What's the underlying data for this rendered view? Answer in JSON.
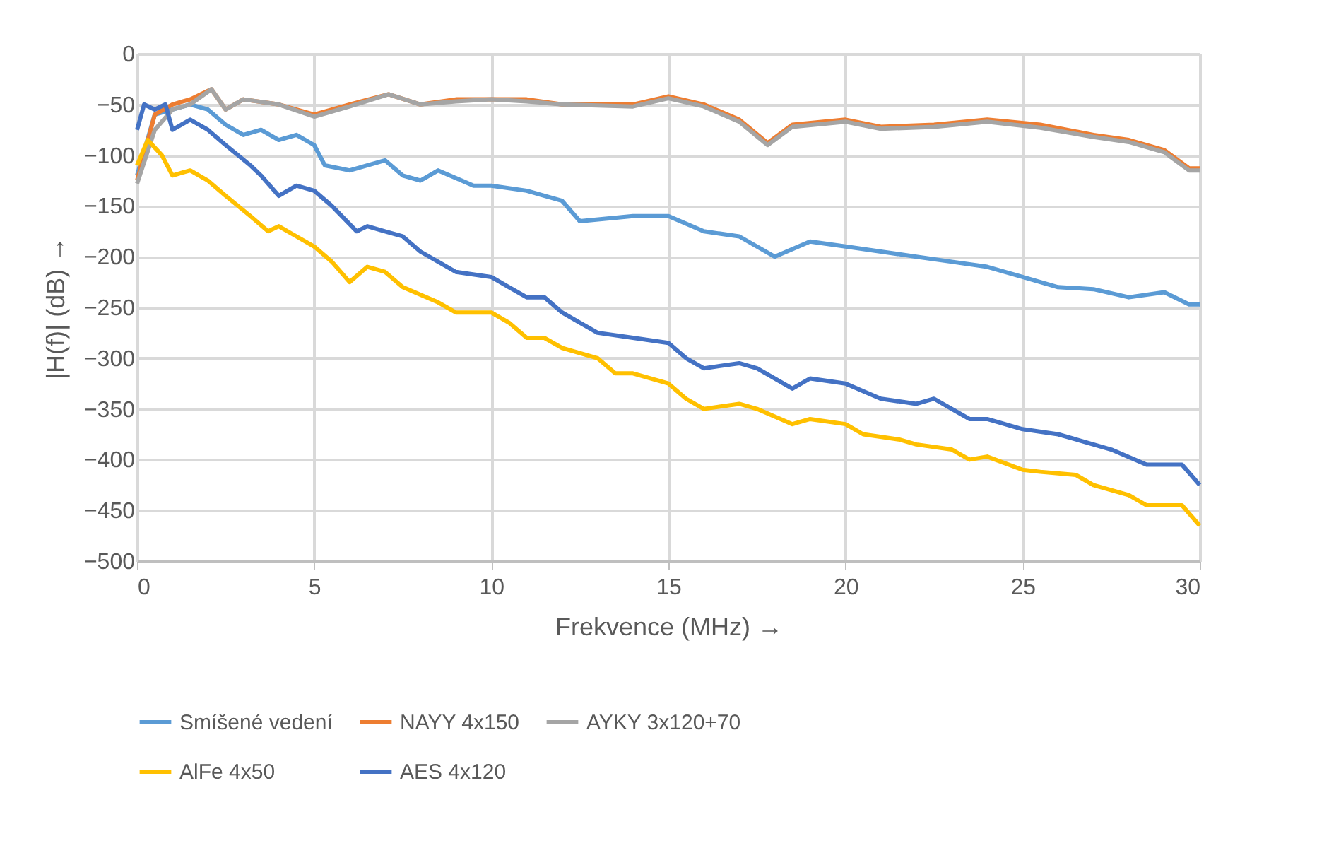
{
  "chart_data": {
    "type": "line",
    "xlabel": "Frekvence (MHz) →",
    "ylabel": "|H(f)| (dB) →",
    "xlim": [
      0,
      30
    ],
    "xticks": [
      0,
      5,
      10,
      15,
      20,
      25,
      30
    ],
    "ylim": [
      -500,
      0
    ],
    "yticks": [
      -500,
      -450,
      -400,
      -350,
      -300,
      -250,
      -200,
      -150,
      -100,
      -50,
      0
    ],
    "grid": true,
    "legend": "bottom",
    "marker": "none",
    "line_style": "solid",
    "series": [
      {
        "name": "Smíšené vedení",
        "color": "#5b9bd5",
        "x": [
          0,
          0.5,
          1.5,
          2,
          2.5,
          3,
          3.5,
          4,
          4.5,
          5,
          5.3,
          6,
          7,
          7.5,
          8,
          8.5,
          9.5,
          10,
          11,
          12,
          12.5,
          14,
          15,
          16,
          17,
          18,
          19,
          20,
          21,
          22,
          23,
          24,
          25,
          26,
          27,
          28,
          29,
          29.7,
          30
        ],
        "values": [
          -120,
          -60,
          -50,
          -55,
          -70,
          -80,
          -75,
          -85,
          -80,
          -90,
          -110,
          -115,
          -105,
          -120,
          -125,
          -115,
          -130,
          -130,
          -135,
          -145,
          -165,
          -160,
          -160,
          -175,
          -180,
          -200,
          -185,
          -190,
          -195,
          -200,
          -205,
          -210,
          -220,
          -230,
          -232,
          -240,
          -235,
          -247,
          -247
        ]
      },
      {
        "name": "NAYY 4x150",
        "color": "#ed7d31",
        "x": [
          0,
          0.5,
          1,
          1.5,
          2.1,
          2.5,
          3,
          4,
          5,
          6,
          7.1,
          8,
          9,
          10,
          11,
          12,
          14,
          15,
          16,
          17,
          17.8,
          18.5,
          20,
          21,
          22.5,
          24,
          25.5,
          27,
          28,
          29,
          29.7,
          30
        ],
        "values": [
          -125,
          -60,
          -50,
          -45,
          -35,
          -55,
          -45,
          -50,
          -60,
          -50,
          -40,
          -50,
          -45,
          -45,
          -45,
          -50,
          -50,
          -42,
          -50,
          -65,
          -88,
          -70,
          -65,
          -72,
          -70,
          -65,
          -70,
          -80,
          -85,
          -95,
          -113,
          -113
        ]
      },
      {
        "name": "AYKY 3x120+70",
        "color": "#a5a5a5",
        "x": [
          0,
          0.5,
          1,
          1.5,
          2.1,
          2.5,
          3,
          4,
          5,
          6,
          7.1,
          8,
          9,
          10,
          11,
          12,
          14,
          15,
          16,
          17,
          17.8,
          18.5,
          20,
          21,
          22.5,
          24,
          25.5,
          27,
          28,
          29,
          29.7,
          30
        ],
        "values": [
          -128,
          -75,
          -55,
          -50,
          -35,
          -55,
          -45,
          -50,
          -62,
          -52,
          -40,
          -50,
          -47,
          -45,
          -47,
          -50,
          -52,
          -44,
          -52,
          -67,
          -90,
          -72,
          -67,
          -74,
          -72,
          -67,
          -73,
          -82,
          -87,
          -97,
          -115,
          -115
        ]
      },
      {
        "name": "AlFe 4x50",
        "color": "#ffc000",
        "x": [
          0,
          0.3,
          0.7,
          1,
          1.5,
          2,
          2.5,
          3.2,
          3.7,
          4,
          4.5,
          5,
          5.5,
          6,
          6.5,
          7,
          7.5,
          8.5,
          9,
          10,
          10.5,
          11,
          11.5,
          12,
          13,
          13.5,
          14,
          15,
          15.5,
          16,
          17,
          17.5,
          18.5,
          19,
          20,
          20.5,
          21.5,
          22,
          23,
          23.5,
          24,
          25,
          25.5,
          26.5,
          27,
          28,
          28.5,
          29.5,
          30
        ],
        "values": [
          -110,
          -85,
          -100,
          -120,
          -115,
          -125,
          -140,
          -160,
          -175,
          -170,
          -180,
          -190,
          -205,
          -225,
          -210,
          -215,
          -230,
          -245,
          -255,
          -255,
          -265,
          -280,
          -280,
          -290,
          -300,
          -315,
          -315,
          -325,
          -340,
          -350,
          -345,
          -350,
          -365,
          -360,
          -365,
          -375,
          -380,
          -385,
          -390,
          -400,
          -397,
          -410,
          -412,
          -415,
          -425,
          -435,
          -445,
          -445,
          -465
        ]
      },
      {
        "name": "AES 4x120",
        "color": "#4472c4",
        "x": [
          0,
          0.2,
          0.5,
          0.8,
          1,
          1.5,
          2,
          2.5,
          3.2,
          3.5,
          4,
          4.5,
          5,
          5.5,
          6.2,
          6.5,
          7,
          7.5,
          8,
          8.5,
          9,
          10,
          10.5,
          11,
          11.5,
          12,
          12.5,
          13,
          14,
          15,
          15.5,
          16,
          17,
          17.5,
          18.5,
          19,
          20,
          21,
          22,
          22.5,
          23,
          23.5,
          24,
          25,
          26,
          26.5,
          27.5,
          28.5,
          29.5,
          30
        ],
        "values": [
          -75,
          -50,
          -55,
          -50,
          -75,
          -65,
          -75,
          -90,
          -110,
          -120,
          -140,
          -130,
          -135,
          -150,
          -175,
          -170,
          -175,
          -180,
          -195,
          -205,
          -215,
          -220,
          -230,
          -240,
          -240,
          -255,
          -265,
          -275,
          -280,
          -285,
          -300,
          -310,
          -305,
          -310,
          -330,
          -320,
          -325,
          -340,
          -345,
          -340,
          -350,
          -360,
          -360,
          -370,
          -375,
          -380,
          -390,
          -405,
          -405,
          -425
        ]
      }
    ]
  }
}
